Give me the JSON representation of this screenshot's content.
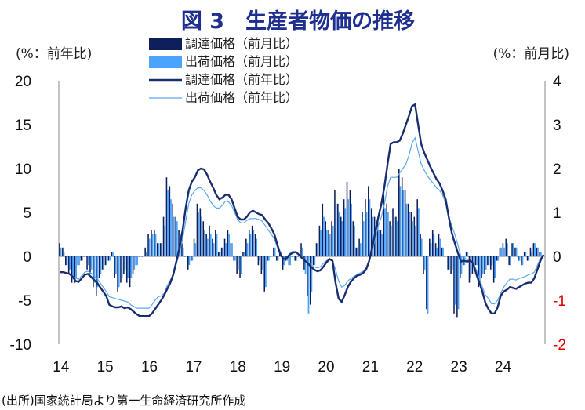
{
  "chart_data": {
    "type": "bar+line",
    "title": "図 3　生産者物価の推移",
    "left_axis_unit": "(%：前年比)",
    "right_axis_unit": "(%：前月比)",
    "left_ylim": [
      -10,
      20
    ],
    "left_ticks": [
      "20",
      "15",
      "10",
      "5",
      "0",
      "-5",
      "-10"
    ],
    "right_ylim": [
      -2,
      4
    ],
    "right_ticks": [
      "4",
      "3",
      "2",
      "1",
      "0",
      "-1",
      "-2"
    ],
    "x_labels": [
      "14",
      "15",
      "16",
      "17",
      "18",
      "19",
      "20",
      "21",
      "22",
      "23",
      "24"
    ],
    "x_start_year": 2014,
    "source": "(出所)国家統計局より第一生命経済研究所作成",
    "colors": {
      "purchase_mom": "#0f1f5c",
      "shipment_mom": "#4aa3ff",
      "purchase_yoy": "#1a2d70",
      "shipment_yoy": "#5aa8f0",
      "neg_tick": "#e00000"
    },
    "legend": [
      {
        "label": "調達価格（前月比）",
        "kind": "bar",
        "color": "#0f1f5c"
      },
      {
        "label": "出荷価格（前月比）",
        "kind": "bar",
        "color": "#4aa3ff"
      },
      {
        "label": "調達価格（前年比）",
        "kind": "line",
        "color": "#1a2d70",
        "width": 2.4
      },
      {
        "label": "出荷価格（前年比）",
        "kind": "line",
        "color": "#5aa8f0",
        "width": 1.2
      }
    ],
    "series_yoy_purchase": [
      -1.8,
      -1.8,
      -1.9,
      -2.0,
      -2.3,
      -2.8,
      -2.9,
      -2.5,
      -2.1,
      -2.0,
      -2.3,
      -2.7,
      -3.0,
      -3.5,
      -4.0,
      -4.5,
      -5.5,
      -5.7,
      -5.8,
      -5.8,
      -5.7,
      -5.9,
      -5.8,
      -6.0,
      -6.3,
      -6.6,
      -6.8,
      -6.8,
      -6.8,
      -6.8,
      -6.5,
      -6.0,
      -5.5,
      -5.0,
      -4.4,
      -3.7,
      -3.0,
      -2.0,
      -0.5,
      1.0,
      3.0,
      5.5,
      7.5,
      8.5,
      9.0,
      9.8,
      10.0,
      9.9,
      9.3,
      8.5,
      7.8,
      7.0,
      6.5,
      6.7,
      7.0,
      7.0,
      6.5,
      5.5,
      4.5,
      4.2,
      4.2,
      4.5,
      5.0,
      5.2,
      5.0,
      4.8,
      4.7,
      4.2,
      3.8,
      3.2,
      2.5,
      1.3,
      0.2,
      -0.3,
      -0.2,
      0.2,
      0.4,
      0.5,
      0.2,
      -0.2,
      -0.5,
      -0.8,
      -1.2,
      -1.5,
      -1.7,
      -1.6,
      -1.2,
      -0.7,
      -0.3,
      -0.5,
      -3.0,
      -4.8,
      -5.2,
      -4.4,
      -3.5,
      -2.9,
      -2.5,
      -2.2,
      -2.1,
      -1.9,
      -1.5,
      -0.5,
      1.0,
      2.8,
      4.5,
      6.0,
      8.0,
      10.5,
      12.8,
      13.0,
      13.0,
      13.2,
      14.0,
      15.0,
      16.0,
      17.1,
      17.3,
      15.0,
      12.8,
      11.8,
      11.0,
      10.2,
      9.5,
      8.8,
      8.3,
      7.5,
      6.5,
      4.5,
      2.7,
      1.5,
      0.4,
      -0.6,
      -0.5,
      -0.6,
      -0.5,
      -0.8,
      -2.0,
      -3.0,
      -4.0,
      -5.3,
      -6.0,
      -6.5,
      -6.5,
      -5.8,
      -4.5,
      -4.0,
      -3.8,
      -3.5,
      -3.6,
      -3.7,
      -3.5,
      -3.3,
      -3.1,
      -3.0,
      -3.0,
      -2.5,
      -1.5,
      -0.5,
      0.2
    ],
    "series_yoy_shipment": [
      -1.8,
      -1.8,
      -1.9,
      -2.0,
      -2.2,
      -2.5,
      -2.6,
      -2.2,
      -1.8,
      -1.7,
      -1.9,
      -2.2,
      -2.5,
      -3.0,
      -3.5,
      -4.0,
      -4.6,
      -4.7,
      -4.8,
      -4.9,
      -5.0,
      -5.1,
      -5.2,
      -5.5,
      -5.7,
      -5.9,
      -5.9,
      -5.9,
      -5.9,
      -5.9,
      -5.5,
      -5.0,
      -4.6,
      -4.5,
      -4.2,
      -3.3,
      -2.7,
      -2.0,
      -0.8,
      0.4,
      2.0,
      4.0,
      6.0,
      7.0,
      7.5,
      7.8,
      7.8,
      7.5,
      7.0,
      6.3,
      5.8,
      5.5,
      5.5,
      5.8,
      6.3,
      6.2,
      5.8,
      5.0,
      4.2,
      3.8,
      3.8,
      4.1,
      4.3,
      4.3,
      4.3,
      4.2,
      4.0,
      3.5,
      3.0,
      2.5,
      2.0,
      1.0,
      0.2,
      -0.2,
      -0.1,
      0.3,
      0.6,
      0.5,
      0.2,
      -0.1,
      -0.4,
      -0.7,
      -1.0,
      -1.2,
      -1.3,
      -1.2,
      -0.8,
      -0.5,
      -0.4,
      -0.5,
      -1.5,
      -2.8,
      -3.5,
      -3.3,
      -2.8,
      -2.5,
      -2.3,
      -2.1,
      -1.9,
      -1.7,
      -1.3,
      -0.5,
      0.7,
      2.0,
      3.5,
      4.5,
      6.0,
      8.0,
      9.0,
      9.0,
      9.0,
      9.5,
      10.0,
      10.5,
      11.5,
      12.9,
      13.5,
      12.0,
      10.5,
      9.8,
      9.2,
      8.7,
      8.3,
      7.8,
      7.5,
      7.0,
      6.0,
      4.5,
      3.5,
      2.5,
      1.3,
      0.0,
      -0.1,
      -0.4,
      -0.5,
      -0.8,
      -1.5,
      -2.5,
      -3.5,
      -4.4,
      -4.8,
      -5.4,
      -5.4,
      -5.0,
      -4.2,
      -3.5,
      -3.0,
      -2.6,
      -2.6,
      -2.7,
      -2.5,
      -2.4,
      -2.3,
      -2.1,
      -2.0,
      -1.8,
      -1.0,
      -0.2,
      0.0
    ],
    "series_mom_purchase": [
      0.3,
      0.2,
      -0.2,
      -0.4,
      -0.6,
      -0.6,
      -0.2,
      -0.1,
      0.0,
      -0.3,
      -0.4,
      -0.7,
      -0.9,
      -0.5,
      -0.3,
      -0.2,
      -0.1,
      0.1,
      -0.5,
      -0.8,
      -0.6,
      -0.4,
      -0.6,
      -0.7,
      -0.4,
      -0.2,
      0.0,
      0.0,
      0.2,
      0.5,
      0.6,
      0.6,
      0.3,
      0.3,
      0.9,
      1.8,
      1.6,
      1.2,
      0.9,
      0.6,
      0.3,
      0.0,
      -0.3,
      -0.1,
      0.4,
      1.2,
      1.1,
      0.8,
      0.5,
      0.7,
      0.4,
      0.6,
      0.1,
      0.2,
      0.4,
      0.6,
      0.3,
      -0.1,
      -0.4,
      -0.5,
      0.1,
      0.4,
      0.6,
      0.7,
      0.5,
      -0.2,
      -0.4,
      -0.8,
      -0.1,
      0.0,
      0.2,
      -0.1,
      0.1,
      -0.3,
      -0.1,
      -0.2,
      0.0,
      -0.1,
      0.0,
      0.3,
      -0.3,
      -0.9,
      -1.1,
      -0.2,
      0.3,
      0.7,
      1.2,
      0.8,
      0.6,
      0.8,
      1.5,
      1.2,
      0.9,
      1.3,
      1.7,
      1.5,
      0.8,
      0.2,
      0.4,
      1.0,
      1.3,
      1.6,
      1.1,
      0.9,
      0.8,
      0.6,
      1.4,
      1.2,
      0.8,
      1.1,
      0.9,
      2.0,
      1.8,
      1.5,
      1.2,
      1.0,
      0.9,
      1.3,
      0.5,
      -0.4,
      -1.2,
      0.4,
      0.6,
      0.3,
      0.5,
      0.2,
      0.0,
      -0.3,
      -0.4,
      -1.3,
      -1.4,
      -0.5,
      -0.2,
      0.1,
      -0.6,
      -0.4,
      -0.2,
      -0.7,
      -0.5,
      -0.4,
      -0.2,
      -0.3,
      -0.6,
      -0.1,
      0.2,
      0.3,
      0.4,
      -0.2,
      0.3,
      0.2,
      -0.1,
      -0.2,
      0.1,
      -0.1,
      0.2,
      0.3,
      0.2,
      0.1,
      0.0
    ],
    "series_mom_shipment": [
      0.2,
      0.1,
      -0.2,
      -0.3,
      -0.5,
      -0.5,
      -0.2,
      -0.1,
      0.0,
      -0.2,
      -0.3,
      -0.6,
      -0.7,
      -0.4,
      -0.3,
      -0.2,
      -0.1,
      0.1,
      -0.4,
      -0.7,
      -0.5,
      -0.3,
      -0.5,
      -0.5,
      -0.3,
      -0.2,
      0.0,
      0.0,
      0.1,
      0.4,
      0.5,
      0.5,
      0.3,
      0.3,
      0.7,
      1.5,
      1.3,
      0.9,
      0.8,
      0.5,
      0.2,
      0.0,
      -0.2,
      -0.1,
      0.3,
      1.0,
      0.9,
      0.6,
      0.4,
      0.5,
      0.3,
      0.5,
      0.1,
      0.2,
      0.3,
      0.5,
      0.3,
      -0.1,
      -0.3,
      -0.4,
      0.1,
      0.3,
      0.5,
      0.6,
      0.4,
      -0.1,
      -0.3,
      -0.7,
      -0.1,
      0.0,
      0.2,
      -0.1,
      0.1,
      -0.2,
      -0.1,
      -0.2,
      0.0,
      -0.1,
      0.0,
      0.2,
      -0.4,
      -1.3,
      -0.8,
      -0.2,
      0.3,
      0.6,
      0.9,
      0.6,
      0.5,
      0.7,
      1.2,
      1.0,
      0.8,
      1.1,
      1.3,
      1.2,
      0.7,
      0.2,
      0.3,
      0.8,
      1.0,
      1.3,
      0.9,
      0.7,
      0.6,
      0.5,
      1.1,
      1.0,
      0.7,
      0.9,
      0.8,
      1.6,
      1.5,
      1.2,
      1.0,
      0.8,
      0.7,
      1.1,
      0.4,
      -0.3,
      -1.3,
      0.3,
      0.5,
      0.2,
      0.4,
      0.2,
      0.0,
      -0.3,
      -0.3,
      -1.1,
      -1.2,
      -0.4,
      -0.2,
      0.1,
      -0.5,
      -0.3,
      -0.2,
      -0.6,
      -0.4,
      -0.3,
      -0.2,
      -0.2,
      -0.5,
      -0.1,
      0.2,
      0.2,
      0.3,
      -0.2,
      0.3,
      0.2,
      -0.1,
      -0.2,
      0.1,
      -0.1,
      0.1,
      0.3,
      0.2,
      0.1,
      0.0
    ]
  }
}
